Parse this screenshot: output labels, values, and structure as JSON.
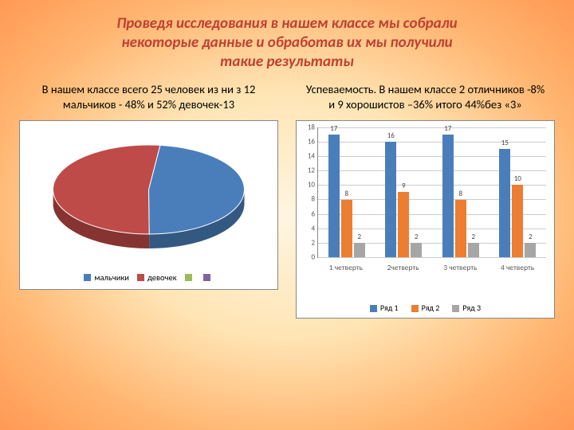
{
  "title_color": "#c04030",
  "title_fontsize": 19,
  "title_lines": [
    "Проведя исследования в нашем классе мы собрали",
    "некоторые данные и обработав их мы получили",
    "такие результаты"
  ],
  "left": {
    "subtitle": "В  нашем классе всего 25 человек из ни з 12 мальчиков - 48% и  52% девочек-13",
    "pie": {
      "type": "pie",
      "slices": [
        {
          "label": "мальчики",
          "value": 48,
          "color": "#4a7ebb"
        },
        {
          "label": "девочек",
          "value": 52,
          "color": "#be4b48"
        }
      ],
      "legend_extra": [
        {
          "label": "",
          "color": "#9bbb59"
        },
        {
          "label": "",
          "color": "#8064a2"
        }
      ],
      "border_color": "#888888",
      "background": "#ffffff"
    }
  },
  "right": {
    "subtitle": "Успеваемость. В нашем классе 2 отличников -8% и 9 хорошистов –36% итого 44%без «3»",
    "bar": {
      "type": "bar",
      "categories": [
        "1 четверть",
        "2четверть",
        "3 четверть",
        "4 четверть"
      ],
      "series": [
        {
          "name": "Ряд 1",
          "color": "#4a7ebb",
          "values": [
            17,
            16,
            17,
            15
          ]
        },
        {
          "name": "Ряд 2",
          "color": "#ed7d31",
          "values": [
            8,
            9,
            8,
            10
          ]
        },
        {
          "name": "Ряд 3",
          "color": "#a6a6a6",
          "values": [
            2,
            2,
            2,
            2
          ]
        }
      ],
      "ylim": [
        0,
        18
      ],
      "ytick_step": 2,
      "grid_color": "#cccccc",
      "axis_color": "#888888",
      "label_fontsize": 9,
      "background": "#ffffff"
    }
  }
}
